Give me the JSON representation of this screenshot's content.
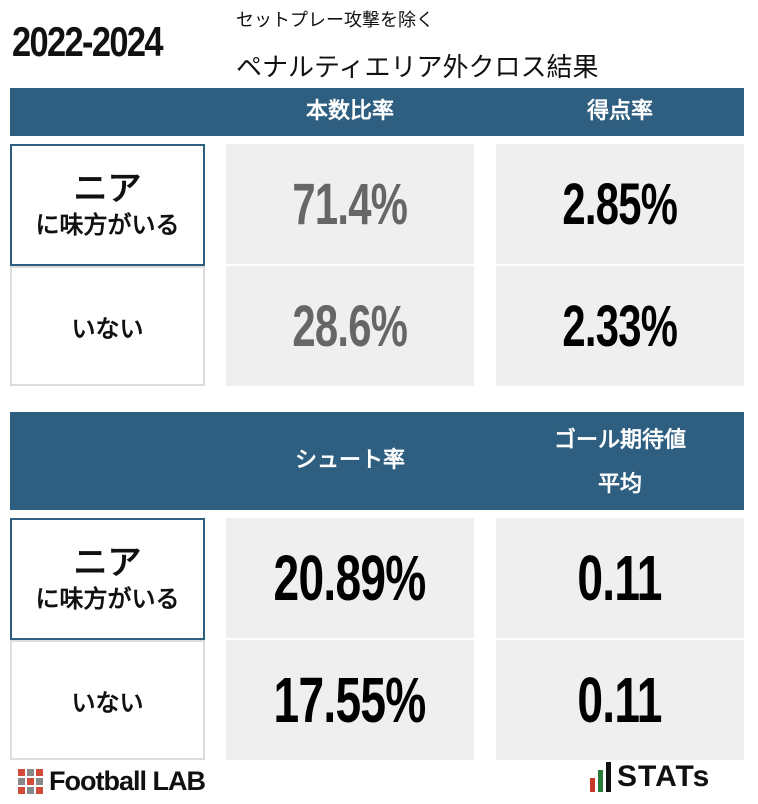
{
  "header": {
    "year_range": "2022-2024",
    "subtitle": "セットプレー攻撃を除く",
    "title": "ペナルティエリア外クロス結果"
  },
  "table1": {
    "columns": [
      "本数比率",
      "得点率"
    ],
    "rows": [
      {
        "label_main": "ニア",
        "label_sub": "に味方がいる",
        "values": [
          "71.4%",
          "2.85%"
        ]
      },
      {
        "label_main": "",
        "label_sub": "いない",
        "values": [
          "28.6%",
          "2.33%"
        ]
      }
    ]
  },
  "table2": {
    "columns": [
      "シュート率",
      "ゴール期待値\n平均"
    ],
    "column2_line1": "ゴール期待値",
    "column2_line2": "平均",
    "rows": [
      {
        "label_main": "ニア",
        "label_sub": "に味方がいる",
        "values": [
          "20.89%",
          "0.11"
        ]
      },
      {
        "label_main": "",
        "label_sub": "いない",
        "values": [
          "17.55%",
          "0.11"
        ]
      }
    ]
  },
  "footer": {
    "left_brand": "Football LAB",
    "right_brand": "STATs"
  },
  "colors": {
    "header_bar": "#2e5f80",
    "cell_bg": "#efefef",
    "grey_value": "#666666"
  }
}
